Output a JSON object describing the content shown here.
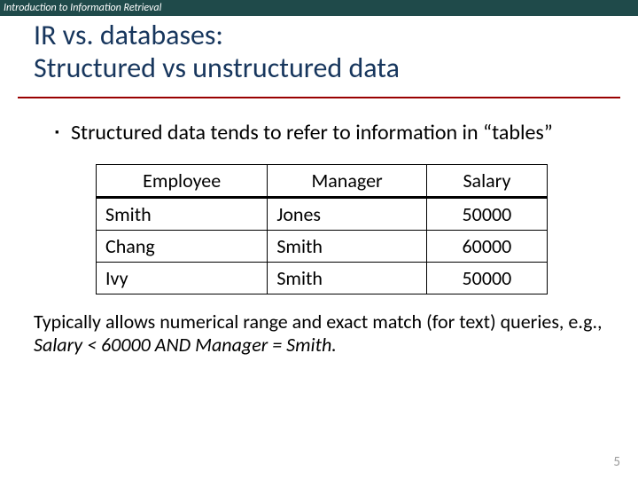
{
  "header": {
    "text": "Introduction to Information Retrieval"
  },
  "title": {
    "line1": "IR vs. databases:",
    "line2": "Structured vs unstructured data",
    "color": "#17365d",
    "underline_color": "#990000"
  },
  "bullet": {
    "marker": "▪",
    "text": "Structured data tends to refer to information in “tables”"
  },
  "table": {
    "columns": [
      "Employee",
      "Manager",
      "Salary"
    ],
    "rows": [
      [
        "Smith",
        "Jones",
        "50000"
      ],
      [
        "Chang",
        "Smith",
        "60000"
      ],
      [
        "Ivy",
        "Smith",
        "50000"
      ]
    ],
    "col_align": [
      "left",
      "left",
      "center"
    ],
    "border_color": "#000000"
  },
  "note": {
    "line1": "Typically allows numerical range and exact match (for text) queries, e.g.,",
    "line2_italic": "Salary < 60000 AND Manager = Smith."
  },
  "page_number": "5",
  "colors": {
    "header_bg": "#1f4a4a",
    "header_text": "#ffffff",
    "body_bg": "#ffffff",
    "body_text": "#000000",
    "pagenum": "#9a9a9a"
  },
  "fonts": {
    "family": "Calibri",
    "title_size_pt": 32,
    "body_size_pt": 24,
    "table_size_pt": 22,
    "header_size_pt": 12
  }
}
